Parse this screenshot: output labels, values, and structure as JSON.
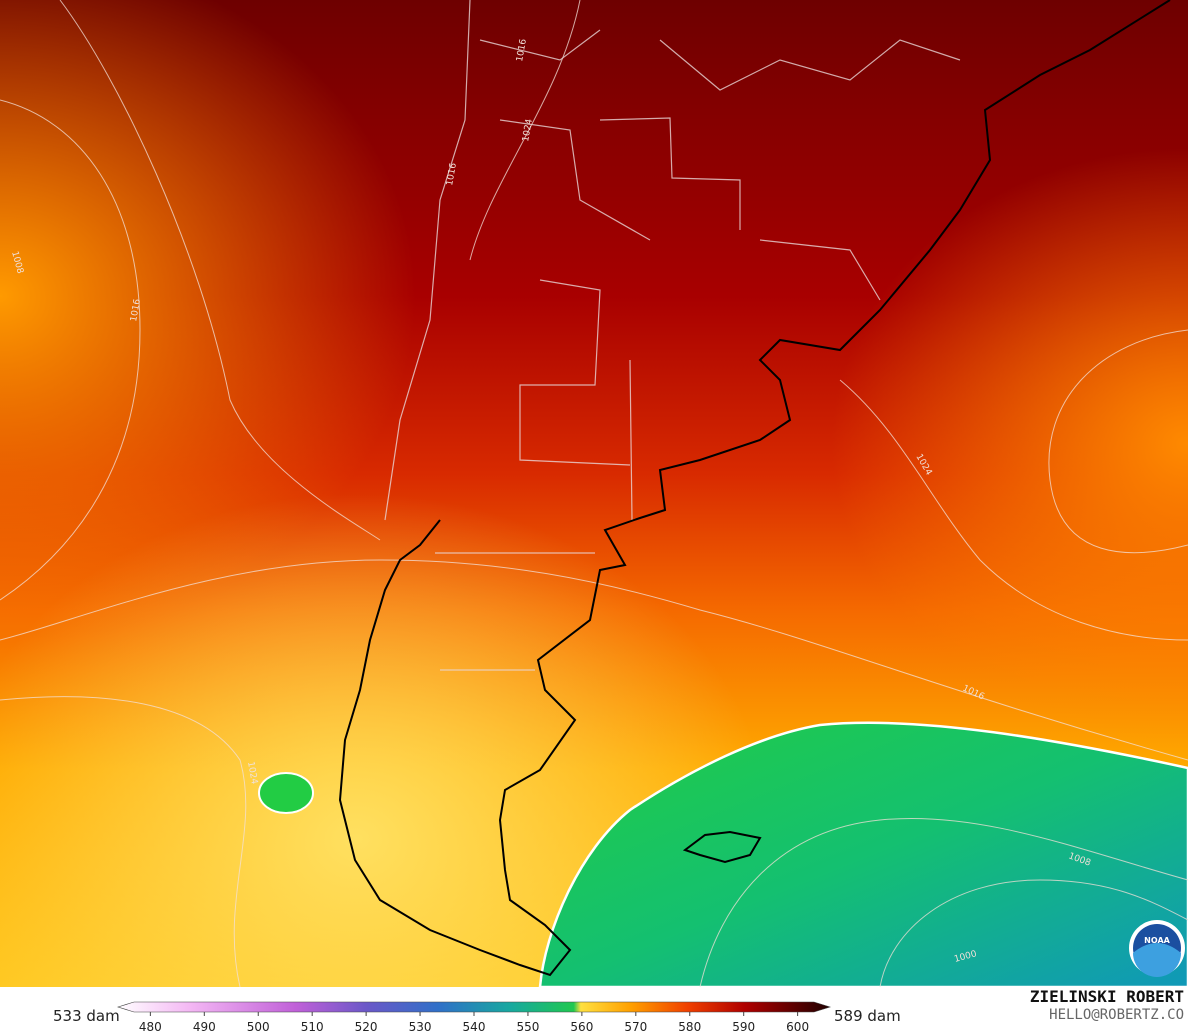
{
  "colorbar": {
    "left_label": "533 dam",
    "right_label": "589 dam",
    "range": [
      474,
      606
    ],
    "ticks": [
      480,
      490,
      500,
      510,
      520,
      530,
      540,
      550,
      560,
      570,
      580,
      590,
      600
    ]
  },
  "contour_labels": [
    "1016",
    "1024",
    "1016",
    "1008",
    "1016",
    "1024",
    "1016",
    "1024",
    "1008",
    "1000"
  ],
  "credit": {
    "name": "ZIELINSKI ROBERT",
    "contact": "HELLO@ROBERTZ.CO"
  },
  "logo": "NOAA"
}
